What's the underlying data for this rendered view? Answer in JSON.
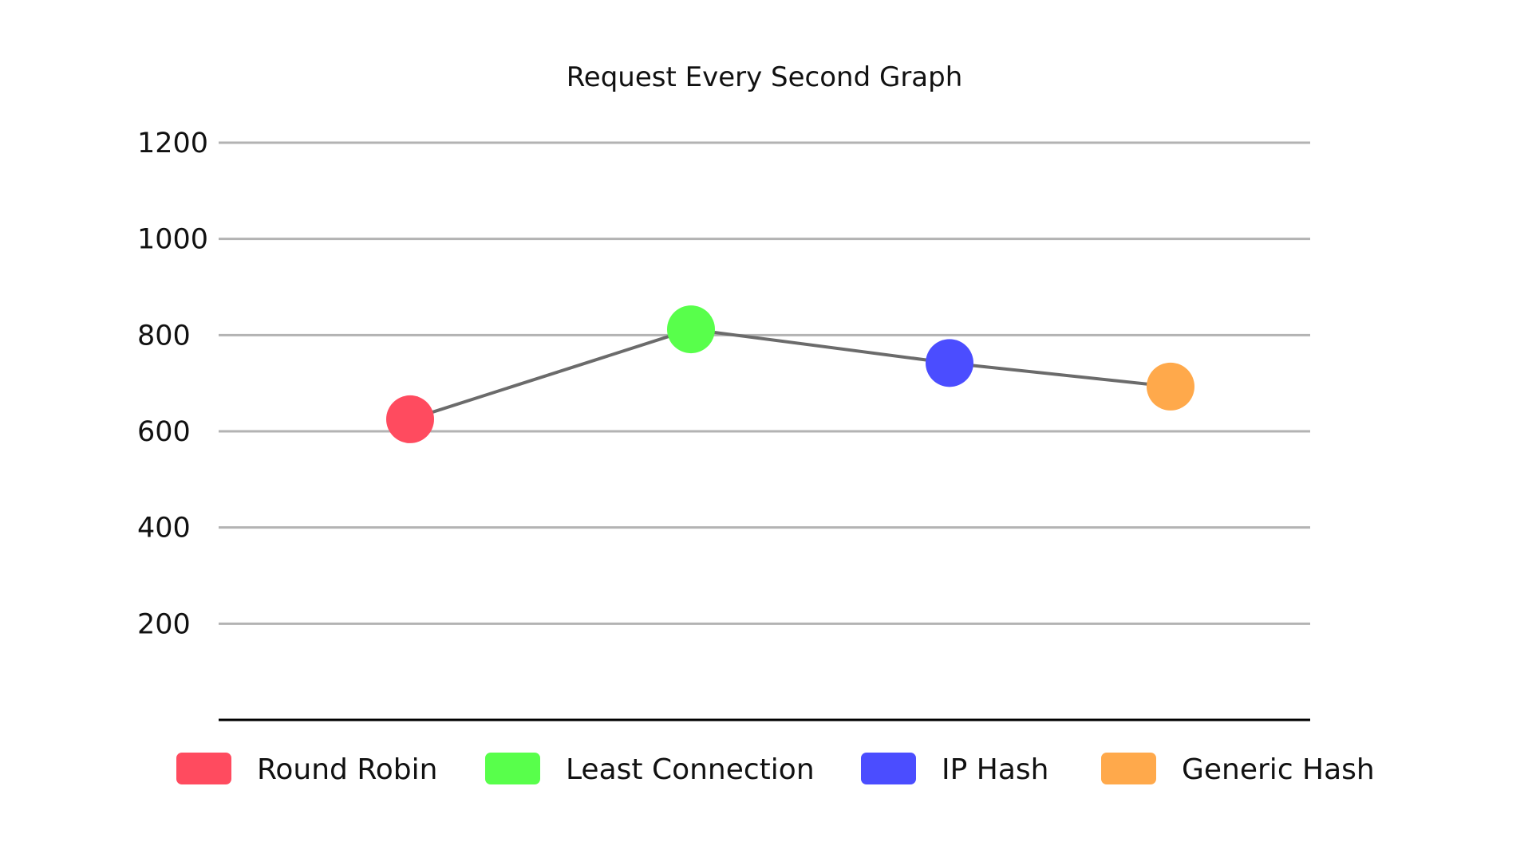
{
  "chart_data": {
    "type": "line",
    "title": "Request Every Second Graph",
    "xlabel": "",
    "ylabel": "",
    "ylim": [
      0,
      1200
    ],
    "yticks": [
      200,
      400,
      600,
      800,
      1000,
      1200
    ],
    "grid": true,
    "legend_position": "bottom",
    "categories": [
      "Round Robin",
      "Least Connection",
      "IP Hash",
      "Generic Hash"
    ],
    "values": [
      625,
      812,
      742,
      693
    ],
    "point_colors": [
      "#ff4b5f",
      "#58ff4b",
      "#4b4dff",
      "#ffa94b"
    ],
    "line_color": "#6b6b6b",
    "legend": [
      {
        "label": "Round Robin",
        "color": "#ff4b5f"
      },
      {
        "label": "Least Connection",
        "color": "#58ff4b"
      },
      {
        "label": "IP Hash",
        "color": "#4b4dff"
      },
      {
        "label": "Generic Hash",
        "color": "#ffa94b"
      }
    ]
  }
}
